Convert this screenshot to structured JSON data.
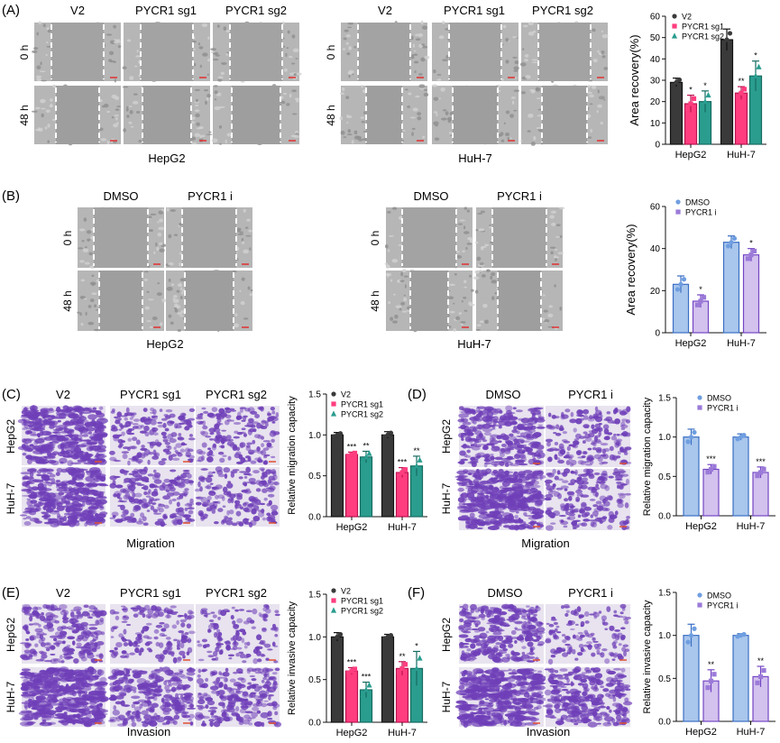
{
  "panels": {
    "A": {
      "letter": "(A)",
      "left_group": {
        "cell": "HepG2",
        "columns": [
          "V2",
          "PYCR1 sg1",
          "PYCR1 sg2"
        ],
        "rows": [
          "0 h",
          "48 h"
        ]
      },
      "right_group": {
        "cell": "HuH-7",
        "columns": [
          "V2",
          "PYCR1 sg1",
          "PYCR1 sg2"
        ],
        "rows": [
          "0 h",
          "48 h"
        ]
      }
    },
    "B": {
      "letter": "(B)",
      "left_group": {
        "cell": "HepG2",
        "columns": [
          "DMSO",
          "PYCR1 i"
        ],
        "rows": [
          "0 h",
          "48 h"
        ]
      },
      "right_group": {
        "cell": "HuH-7",
        "columns": [
          "DMSO",
          "PYCR1 i"
        ],
        "rows": [
          "0 h",
          "48 h"
        ]
      }
    },
    "C": {
      "letter": "(C)",
      "columns": [
        "V2",
        "PYCR1 sg1",
        "PYCR1 sg2"
      ],
      "rows": [
        "HepG2",
        "HuH-7"
      ],
      "caption": "Migration"
    },
    "D": {
      "letter": "(D)",
      "columns": [
        "DMSO",
        "PYCR1 i"
      ],
      "rows": [
        "HepG2",
        "HuH-7"
      ],
      "caption": "Migration"
    },
    "E": {
      "letter": "(E)",
      "columns": [
        "V2",
        "PYCR1 sg1",
        "PYCR1 sg2"
      ],
      "rows": [
        "HepG2",
        "HuH-7"
      ],
      "caption": "Invasion"
    },
    "F": {
      "letter": "(F)",
      "columns": [
        "DMSO",
        "PYCR1 i"
      ],
      "rows": [
        "HepG2",
        "HuH-7"
      ],
      "caption": "Invasion"
    }
  },
  "colors": {
    "v2": "#3a3a3a",
    "sg1": "#ff3d7f",
    "sg2": "#2a9d8f",
    "dmso_fill": "#a9c6ec",
    "dmso_edge": "#3a6fc4",
    "pycr1i_fill": "#d3c1ee",
    "pycr1i_edge": "#7446c4",
    "wound_gray": "#a8a8a8",
    "stain_purple": "#6f3fb8",
    "stain_bg": "#e8e3ef"
  },
  "chart_data": [
    {
      "id": "A",
      "type": "bar",
      "categories": [
        "HepG2",
        "HuH-7"
      ],
      "series": [
        {
          "name": "V2",
          "values": [
            29,
            49
          ],
          "errors": [
            2,
            5
          ],
          "sig": [
            "",
            ""
          ]
        },
        {
          "name": "PYCR1 sg1",
          "values": [
            19,
            24
          ],
          "errors": [
            4,
            3
          ],
          "sig": [
            "*",
            "**"
          ]
        },
        {
          "name": "PYCR1 sg2",
          "values": [
            20,
            32
          ],
          "errors": [
            5,
            7
          ],
          "sig": [
            "*",
            "*"
          ]
        }
      ],
      "ylabel": "Area recovery(%)",
      "ylim": [
        0,
        60
      ],
      "yticks": [
        "0",
        "10",
        "20",
        "30",
        "40",
        "50",
        "60"
      ],
      "legend": "top-right"
    },
    {
      "id": "B",
      "type": "bar",
      "categories": [
        "HepG2",
        "HuH-7"
      ],
      "series": [
        {
          "name": "DMSO",
          "values": [
            23,
            43
          ],
          "errors": [
            4,
            3
          ],
          "sig": [
            "",
            ""
          ]
        },
        {
          "name": "PYCR1 i",
          "values": [
            15,
            37
          ],
          "errors": [
            3,
            3
          ],
          "sig": [
            "*",
            "*"
          ]
        }
      ],
      "ylabel": "Area recovery(%)",
      "ylim": [
        0,
        60
      ],
      "yticks": [
        "0",
        "20",
        "40",
        "60"
      ],
      "legend": "top-right"
    },
    {
      "id": "C",
      "type": "bar",
      "categories": [
        "HepG2",
        "HuH-7"
      ],
      "series": [
        {
          "name": "V2",
          "values": [
            1.0,
            1.0
          ],
          "errors": [
            0.03,
            0.04
          ],
          "sig": [
            "",
            ""
          ]
        },
        {
          "name": "PYCR1 sg1",
          "values": [
            0.76,
            0.54
          ],
          "errors": [
            0.03,
            0.06
          ],
          "sig": [
            "***",
            "***"
          ]
        },
        {
          "name": "PYCR1 sg2",
          "values": [
            0.73,
            0.62
          ],
          "errors": [
            0.07,
            0.12
          ],
          "sig": [
            "**",
            "**"
          ]
        }
      ],
      "ylabel": "Relative migration capacity",
      "ylim": [
        0,
        1.5
      ],
      "yticks": [
        "0.0",
        "0.5",
        "1.0",
        "1.5"
      ],
      "legend": "top-right"
    },
    {
      "id": "D",
      "type": "bar",
      "categories": [
        "HepG2",
        "HuH-7"
      ],
      "series": [
        {
          "name": "DMSO",
          "values": [
            1.0,
            1.0
          ],
          "errors": [
            0.1,
            0.04
          ],
          "sig": [
            "",
            ""
          ]
        },
        {
          "name": "PYCR1 i",
          "values": [
            0.59,
            0.55
          ],
          "errors": [
            0.06,
            0.07
          ],
          "sig": [
            "***",
            "***"
          ]
        }
      ],
      "ylabel": "Relative migration capacity",
      "ylim": [
        0,
        1.5
      ],
      "yticks": [
        "0.0",
        "0.5",
        "1.0",
        "1.5"
      ],
      "legend": "top-right"
    },
    {
      "id": "E",
      "type": "bar",
      "categories": [
        "HepG2",
        "HuH-7"
      ],
      "series": [
        {
          "name": "V2",
          "values": [
            1.0,
            1.0
          ],
          "errors": [
            0.05,
            0.03
          ],
          "sig": [
            "",
            ""
          ]
        },
        {
          "name": "PYCR1 sg1",
          "values": [
            0.6,
            0.63
          ],
          "errors": [
            0.04,
            0.08
          ],
          "sig": [
            "***",
            "**"
          ]
        },
        {
          "name": "PYCR1 sg2",
          "values": [
            0.38,
            0.63
          ],
          "errors": [
            0.09,
            0.2
          ],
          "sig": [
            "***",
            "*"
          ]
        }
      ],
      "ylabel": "Relative invasive capacity",
      "ylim": [
        0,
        1.5
      ],
      "yticks": [
        "0.0",
        "0.5",
        "1.0",
        "1.5"
      ],
      "legend": "top-right"
    },
    {
      "id": "F",
      "type": "bar",
      "categories": [
        "HepG2",
        "HuH-7"
      ],
      "series": [
        {
          "name": "DMSO",
          "values": [
            1.0,
            1.0
          ],
          "errors": [
            0.13,
            0.02
          ],
          "sig": [
            "",
            ""
          ]
        },
        {
          "name": "PYCR1 i",
          "values": [
            0.47,
            0.52
          ],
          "errors": [
            0.13,
            0.12
          ],
          "sig": [
            "**",
            "**"
          ]
        }
      ],
      "ylabel": "Relative invasive capacity",
      "ylim": [
        0,
        1.5
      ],
      "yticks": [
        "0.0",
        "0.5",
        "1.0",
        "1.5"
      ],
      "legend": "top-right"
    }
  ]
}
